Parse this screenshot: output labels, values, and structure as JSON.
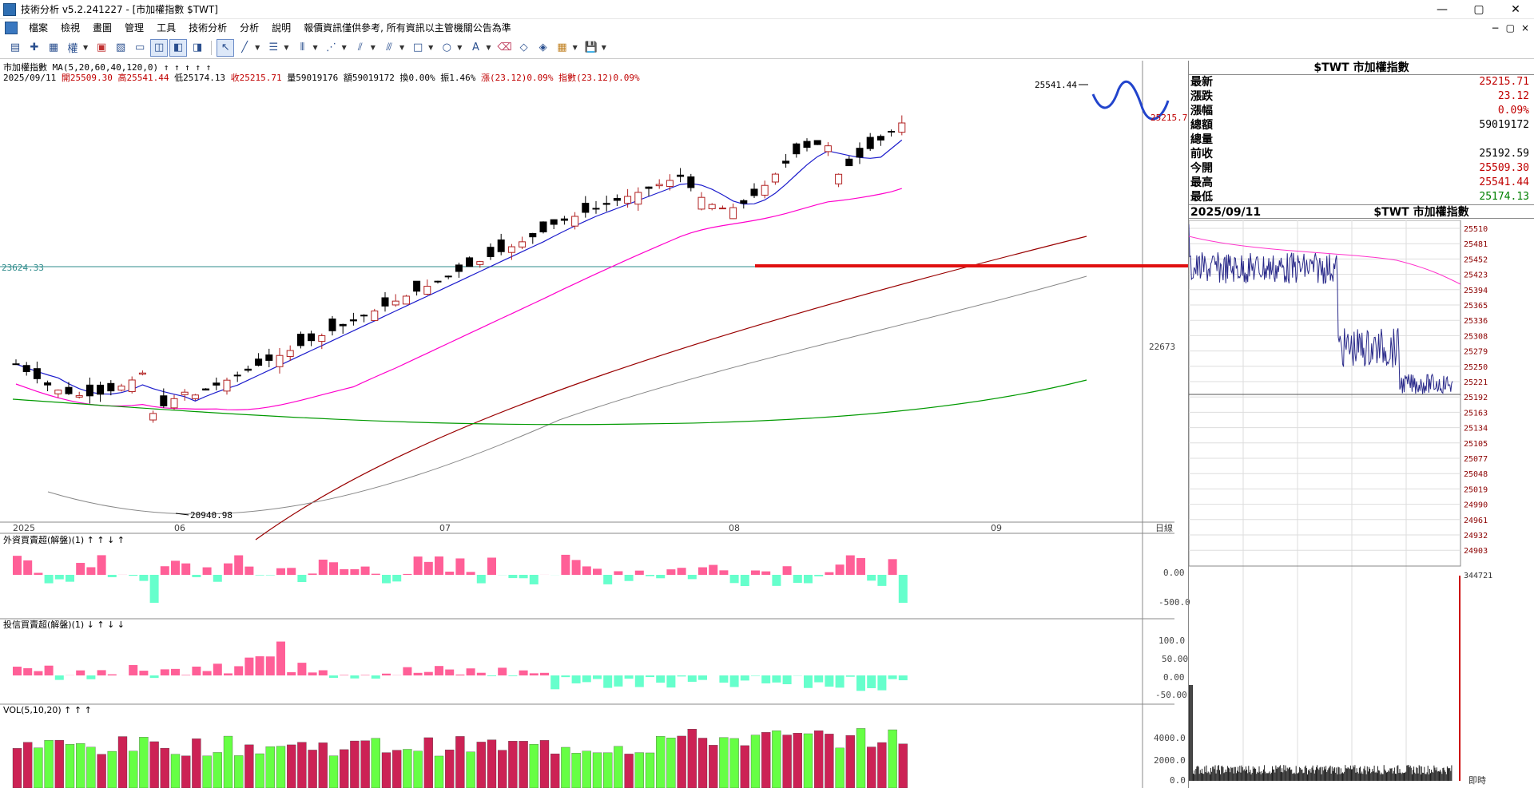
{
  "window": {
    "title": "技術分析 v5.2.241227 - [市加權指數 $TWT]",
    "controls": [
      "—",
      "▢",
      "✕"
    ]
  },
  "menu": {
    "items": [
      "檔案",
      "檢視",
      "畫圖",
      "管理",
      "工具",
      "技術分析",
      "分析",
      "說明",
      "報價資訊僅供參考, 所有資訊以主管機關公告為準"
    ],
    "mdi_controls": [
      "−",
      "▢",
      "×"
    ]
  },
  "toolbar": {
    "buttons": [
      "window-icon",
      "crosshair-icon",
      "period-icon",
      "weight-icon",
      "color-icon",
      "layout-icon",
      "chart1-icon",
      "chart2-icon",
      "chart3-icon",
      "chart4-icon",
      "pointer-icon",
      "line-icon",
      "text-icon",
      "bars-icon",
      "fan-icon",
      "fib-icon",
      "channel-icon",
      "rect-icon",
      "ellipse-icon",
      "text-tool-icon",
      "erase-icon",
      "erase2-icon",
      "erase3-icon",
      "palette-icon",
      "save-icon"
    ]
  },
  "main_chart": {
    "title_line": "市加權指數 MA(5,20,60,40,120,0) ↑ ↑ ↑ ↑ ↑",
    "info_line": {
      "date": "2025/09/11",
      "open": "開25509.30",
      "high": "高25541.44",
      "low": "低25174.13",
      "close": "收25215.71",
      "volume": "量59019176",
      "amount": "額59019172",
      "turnover": "換0.00%",
      "amplitude": "振1.46%",
      "change": "漲(23.12)0.09%",
      "index_change": "指數(23.12)0.09%"
    },
    "hline_label": "23624.33",
    "high_label": "25541.44",
    "low_label": "20940.98",
    "y_tick": "22673",
    "close_tag": "25215.7",
    "x_labels": [
      "2025",
      "06",
      "07",
      "08",
      "09"
    ],
    "x_unit": "日線",
    "colors": {
      "up": "#b22222",
      "down": "#000000",
      "ma5": "#1c1ccc",
      "ma20": "#ff00cc",
      "ma60": "#990000",
      "ma120": "#888888",
      "ma240": "#009900",
      "hline": "#2e8b8b",
      "redline": "#e01010"
    }
  },
  "foreign_panel": {
    "title": "外資買賣超(解盤)(1) ↑ ↑ ↓ ↑",
    "y_ticks": [
      "0.00",
      "-500.0"
    ]
  },
  "trust_panel": {
    "title": "投信買賣超(解盤)(1) ↓ ↑ ↓ ↓",
    "y_ticks": [
      "100.0",
      "50.00",
      "0.00",
      "-50.00"
    ]
  },
  "vol_panel": {
    "title": "VOL(5,10,20) ↑ ↑ ↑",
    "y_ticks": [
      "4000.0",
      "2000.0",
      "0.0"
    ]
  },
  "quote": {
    "title": "$TWT 市加權指數",
    "rows": [
      {
        "label": "最新",
        "value": "25215.71",
        "cls": "up"
      },
      {
        "label": "漲跌",
        "value": "23.12",
        "cls": "up"
      },
      {
        "label": "漲幅",
        "value": "0.09%",
        "cls": "up"
      },
      {
        "label": "總額",
        "value": "59019172",
        "cls": "black"
      },
      {
        "label": "總量",
        "value": "",
        "cls": "black"
      },
      {
        "label": "前收",
        "value": "25192.59",
        "cls": "black"
      },
      {
        "label": "今開",
        "value": "25509.30",
        "cls": "up"
      },
      {
        "label": "最高",
        "value": "25541.44",
        "cls": "up"
      },
      {
        "label": "最低",
        "value": "25174.13",
        "cls": "down"
      }
    ]
  },
  "intraday": {
    "date": "2025/09/11",
    "title": "$TWT 市加權指數",
    "price_ticks": [
      "25510",
      "25481",
      "25452",
      "25423",
      "25394",
      "25365",
      "25336",
      "25308",
      "25279",
      "25250",
      "25221",
      "25192",
      "25163",
      "25134",
      "25105",
      "25077",
      "25048",
      "25019",
      "24990",
      "24961",
      "24932",
      "24903"
    ],
    "vol_tick": "344721",
    "x_unit": "即時"
  },
  "chart_data": {
    "type": "candlestick",
    "title": "市加權指數",
    "last": {
      "date": "2025/09/11",
      "open": 25509.3,
      "high": 25541.44,
      "low": 25174.13,
      "close": 25215.71
    },
    "visible_high": 25541.44,
    "visible_low": 20940.98,
    "reference_line": 23624.33
  }
}
